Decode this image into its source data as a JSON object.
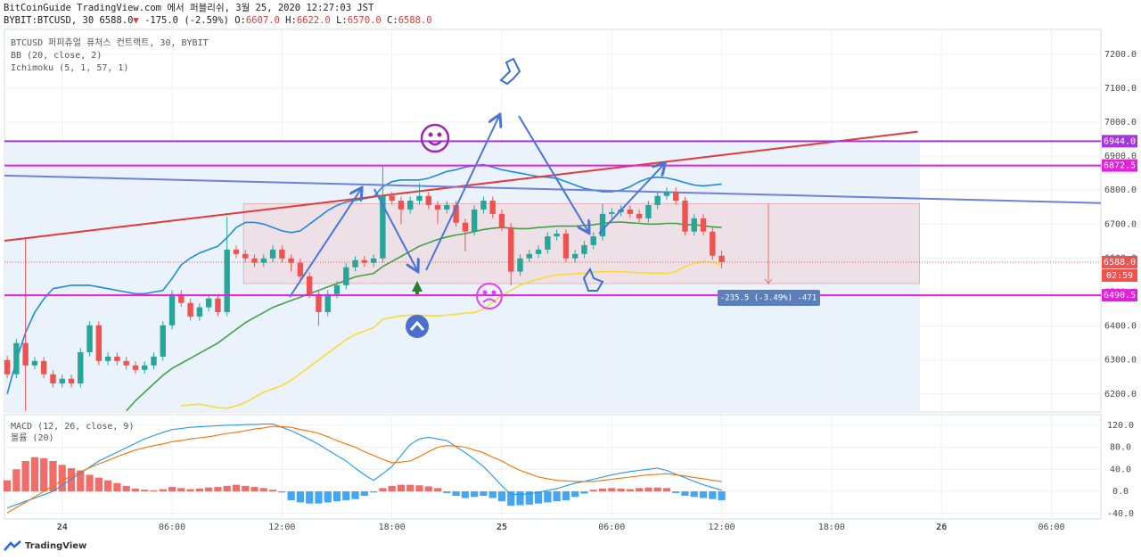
{
  "header": {
    "line1": "BitCoinGuide TradingView.com 에서 퍼블리쉬, 3월 25, 2020 12:27:03 JST",
    "symbol": "BYBIT:BTCUSD, 30",
    "price": "6588.0",
    "arrow": "▼",
    "change": "-175.0 (-2.59%)",
    "ohlc": [
      {
        "key": "O:",
        "value": "6607.0"
      },
      {
        "key": "H:",
        "value": "6622.0"
      },
      {
        "key": "L:",
        "value": "6570.0"
      },
      {
        "key": "C:",
        "value": "6588.0"
      }
    ]
  },
  "footer": {
    "brand": "TradingView"
  },
  "chart_data": [
    {
      "type": "candlestick",
      "indicators": [
        "BTCUSD 퍼피츄얼 퓨처스 컨트랙트, 30, BYBIT",
        "BB (20, close, 2)",
        "Ichimoku (5, 1, 57, 1)"
      ],
      "up_color": "#26a69a",
      "down_color": "#ef5350",
      "xlim": [
        -0.3,
        119.4
      ],
      "ylim": [
        6147,
        7273
      ],
      "yticks": [
        {
          "value": 6200,
          "label": "6200.0"
        },
        {
          "value": 6300,
          "label": "6300.0"
        },
        {
          "value": 6400,
          "label": "6400.0"
        },
        {
          "value": 6500,
          "label": "6500.0"
        },
        {
          "value": 6600,
          "label": "6600.0"
        },
        {
          "value": 6700,
          "label": "6700.0"
        },
        {
          "value": 6800,
          "label": "6800.0"
        },
        {
          "value": 6900,
          "label": "6900.0"
        },
        {
          "value": 7000,
          "label": "7000.0"
        },
        {
          "value": 7100,
          "label": "7100.0"
        },
        {
          "value": 7200,
          "label": "7200.0"
        }
      ],
      "candles": [
        [
          6300,
          6312,
          6246,
          6258
        ],
        [
          6258,
          6362,
          6246,
          6350
        ],
        [
          6350,
          6657,
          6150,
          6284
        ],
        [
          6284,
          6309,
          6272,
          6297
        ],
        [
          6297,
          6309,
          6246,
          6258
        ],
        [
          6258,
          6270,
          6219,
          6231
        ],
        [
          6231,
          6257,
          6219,
          6245
        ],
        [
          6245,
          6257,
          6219,
          6231
        ],
        [
          6231,
          6335,
          6219,
          6323
        ],
        [
          6323,
          6414,
          6311,
          6402
        ],
        [
          6402,
          6414,
          6285,
          6297
        ],
        [
          6297,
          6322,
          6285,
          6310
        ],
        [
          6310,
          6322,
          6285,
          6297
        ],
        [
          6297,
          6309,
          6272,
          6284
        ],
        [
          6284,
          6296,
          6259,
          6271
        ],
        [
          6271,
          6296,
          6259,
          6284
        ],
        [
          6284,
          6322,
          6272,
          6310
        ],
        [
          6310,
          6414,
          6298,
          6402
        ],
        [
          6402,
          6506,
          6390,
          6494
        ],
        [
          6494,
          6506,
          6456,
          6468
        ],
        [
          6468,
          6480,
          6416,
          6428
        ],
        [
          6428,
          6467,
          6416,
          6455
        ],
        [
          6455,
          6493,
          6443,
          6481
        ],
        [
          6481,
          6493,
          6429,
          6441
        ],
        [
          6441,
          6722,
          6429,
          6625
        ],
        [
          6625,
          6637,
          6600,
          6612
        ],
        [
          6612,
          6624,
          6587,
          6599
        ],
        [
          6599,
          6611,
          6574,
          6586
        ],
        [
          6586,
          6611,
          6574,
          6599
        ],
        [
          6599,
          6637,
          6587,
          6625
        ],
        [
          6625,
          6637,
          6587,
          6599
        ],
        [
          6599,
          6611,
          6560,
          6586
        ],
        [
          6586,
          6598,
          6534,
          6546
        ],
        [
          6546,
          6558,
          6482,
          6494
        ],
        [
          6494,
          6506,
          6400,
          6441
        ],
        [
          6441,
          6506,
          6429,
          6494
        ],
        [
          6494,
          6532,
          6482,
          6520
        ],
        [
          6520,
          6585,
          6508,
          6573
        ],
        [
          6573,
          6606,
          6561,
          6594
        ],
        [
          6594,
          6606,
          6574,
          6586
        ],
        [
          6586,
          6611,
          6574,
          6599
        ],
        [
          6599,
          6872,
          6587,
          6783
        ],
        [
          6783,
          6795,
          6757,
          6769
        ],
        [
          6769,
          6781,
          6700,
          6743
        ],
        [
          6743,
          6781,
          6731,
          6769
        ],
        [
          6769,
          6820,
          6757,
          6783
        ],
        [
          6783,
          6795,
          6744,
          6756
        ],
        [
          6756,
          6768,
          6700,
          6743
        ],
        [
          6743,
          6768,
          6731,
          6756
        ],
        [
          6756,
          6768,
          6692,
          6704
        ],
        [
          6704,
          6716,
          6620,
          6678
        ],
        [
          6678,
          6755,
          6666,
          6743
        ],
        [
          6743,
          6781,
          6731,
          6769
        ],
        [
          6769,
          6781,
          6718,
          6730
        ],
        [
          6730,
          6742,
          6679,
          6691
        ],
        [
          6691,
          6703,
          6520,
          6560
        ],
        [
          6560,
          6611,
          6548,
          6599
        ],
        [
          6599,
          6624,
          6587,
          6612
        ],
        [
          6612,
          6637,
          6600,
          6625
        ],
        [
          6625,
          6676,
          6613,
          6664
        ],
        [
          6664,
          6684,
          6652,
          6672
        ],
        [
          6672,
          6684,
          6587,
          6599
        ],
        [
          6599,
          6624,
          6587,
          6612
        ],
        [
          6612,
          6650,
          6600,
          6638
        ],
        [
          6638,
          6676,
          6626,
          6664
        ],
        [
          6664,
          6760,
          6652,
          6730
        ],
        [
          6730,
          6747,
          6718,
          6735
        ],
        [
          6735,
          6755,
          6723,
          6743
        ],
        [
          6743,
          6755,
          6718,
          6730
        ],
        [
          6730,
          6742,
          6705,
          6717
        ],
        [
          6717,
          6768,
          6705,
          6756
        ],
        [
          6756,
          6795,
          6744,
          6783
        ],
        [
          6783,
          6808,
          6771,
          6796
        ],
        [
          6796,
          6808,
          6757,
          6769
        ],
        [
          6769,
          6781,
          6666,
          6678
        ],
        [
          6678,
          6729,
          6666,
          6717
        ],
        [
          6717,
          6729,
          6666,
          6678
        ],
        [
          6678,
          6690,
          6595,
          6607
        ],
        [
          6607,
          6622,
          6570,
          6588
        ]
      ],
      "series": [
        {
          "color": "#1e88e5",
          "values": [
            6200,
            6300,
            6380,
            6440,
            6480,
            6510,
            6515,
            6520,
            6520,
            6520,
            6515,
            6510,
            6505,
            6500,
            6495,
            6495,
            6500,
            6505,
            6540,
            6580,
            6600,
            6615,
            6625,
            6635,
            6660,
            6690,
            6705,
            6705,
            6700,
            6690,
            6680,
            6675,
            6680,
            6700,
            6720,
            6740,
            6755,
            6765,
            6770,
            6775,
            6780,
            6810,
            6825,
            6830,
            6830,
            6830,
            6835,
            6845,
            6855,
            6860,
            6868,
            6872,
            6875,
            6868,
            6860,
            6855,
            6850,
            6845,
            6840,
            6838,
            6835,
            6825,
            6815,
            6805,
            6800,
            6795,
            6795,
            6800,
            6810,
            6825,
            6835,
            6838,
            6836,
            6830,
            6822,
            6815,
            6812,
            6815,
            6818
          ]
        },
        {
          "color": "#43a047",
          "values": [
            null,
            null,
            null,
            null,
            null,
            null,
            null,
            null,
            null,
            null,
            null,
            null,
            null,
            6150,
            6180,
            6205,
            6230,
            6255,
            6275,
            6290,
            6305,
            6320,
            6335,
            6350,
            6370,
            6390,
            6410,
            6425,
            6440,
            6455,
            6465,
            6475,
            6485,
            6495,
            6505,
            6515,
            6525,
            6535,
            6545,
            6550,
            6555,
            6575,
            6590,
            6605,
            6620,
            6635,
            6645,
            6655,
            6662,
            6668,
            6672,
            6678,
            6684,
            6688,
            6690,
            6688,
            6686,
            6687,
            6690,
            6692,
            6694,
            6694,
            6694,
            6696,
            6698,
            6702,
            6705,
            6706,
            6704,
            6702,
            6700,
            6700,
            6702,
            6702,
            6698,
            6698,
            6695,
            6692,
            6690
          ]
        },
        {
          "color": "#fdd835",
          "values": [
            null,
            null,
            null,
            null,
            null,
            null,
            null,
            null,
            null,
            null,
            null,
            null,
            null,
            null,
            null,
            null,
            null,
            null,
            null,
            6165,
            6168,
            6170,
            6165,
            6160,
            6158,
            6165,
            6175,
            6190,
            6205,
            6215,
            6225,
            6240,
            6260,
            6280,
            6300,
            6320,
            6340,
            6360,
            6375,
            6385,
            6395,
            6420,
            6425,
            6430,
            6432,
            6432,
            6430,
            6430,
            6432,
            6435,
            6438,
            6440,
            6450,
            6470,
            6490,
            6505,
            6520,
            6530,
            6538,
            6545,
            6550,
            6552,
            6554,
            6556,
            6558,
            6560,
            6560,
            6560,
            6558,
            6557,
            6556,
            6556,
            6555,
            6560,
            6575,
            6585,
            6590,
            6588,
            6580
          ]
        }
      ],
      "levels": [
        {
          "value": 6944,
          "label": "6944.0",
          "color": "#a536e0"
        },
        {
          "value": 6872.5,
          "label": "6872.5",
          "color": "#e61ee0"
        },
        {
          "value": 6490.5,
          "label": "6490.5",
          "color": "#e61ee0"
        }
      ],
      "trendlines": [
        {
          "color": "#e53935",
          "start": [
            -0.3,
            6651
          ],
          "end": [
            99.4,
            6972
          ]
        },
        {
          "color": "#6f7fe0",
          "start": [
            -0.3,
            6843
          ],
          "end": [
            119.4,
            6762
          ]
        }
      ],
      "measure": {
        "start_x": 25.8,
        "end_x": 99.6,
        "start_price": 6760.5,
        "end_price": 6525,
        "label": "-235.5 (-3.49%) -471"
      },
      "last_price": {
        "value": 6588,
        "label": "6588.0",
        "countdown": "02:59",
        "color": "#ef5350"
      }
    },
    {
      "type": "macd",
      "title": "MACD (12, 26, close, 9)",
      "volume_title": "볼륨 (20)",
      "xlim": [
        -0.3,
        119.4
      ],
      "ylim": [
        -50,
        139
      ],
      "yticks": [
        {
          "value": 120,
          "label": "120.0"
        },
        {
          "value": 80,
          "label": "80.0"
        },
        {
          "value": 40,
          "label": "40.0"
        },
        {
          "value": 0,
          "label": "0.0"
        },
        {
          "value": -40,
          "label": "-40.0"
        }
      ],
      "xticks": [
        {
          "value": 6,
          "label": "24"
        },
        {
          "value": 18,
          "label": "06:00"
        },
        {
          "value": 30,
          "label": "12:00"
        },
        {
          "value": 42,
          "label": "18:00"
        },
        {
          "value": 54,
          "label": "25"
        },
        {
          "value": 66,
          "label": "06:00"
        },
        {
          "value": 78,
          "label": "12:00"
        },
        {
          "value": 90,
          "label": "18:00"
        },
        {
          "value": 102,
          "label": "26"
        },
        {
          "value": 114,
          "label": "06:00"
        }
      ],
      "histogram": {
        "positive_color": "#ef5350",
        "negative_color": "#2196f3",
        "values": [
          20,
          40,
          55,
          62,
          60,
          55,
          48,
          42,
          38,
          30,
          25,
          20,
          15,
          10,
          5,
          3,
          2,
          4,
          8,
          6,
          4,
          5,
          7,
          8,
          10,
          12,
          10,
          8,
          6,
          3,
          -2,
          -16,
          -20,
          -22,
          -22,
          -20,
          -18,
          -16,
          -14,
          -8,
          -2,
          6,
          10,
          12,
          12,
          11,
          9,
          6,
          -3,
          -8,
          -12,
          -10,
          -8,
          -12,
          -18,
          -26,
          -25,
          -24,
          -22,
          -20,
          -18,
          -16,
          -10,
          -4,
          3,
          5,
          6,
          5,
          4,
          6,
          7,
          7,
          6,
          -3,
          -8,
          -10,
          -12,
          -14,
          -16
        ]
      },
      "series": [
        {
          "color": "#2196f3",
          "values": [
            -30,
            -24,
            -18,
            -12,
            -6,
            0,
            11,
            22,
            33,
            44,
            55,
            63,
            71,
            79,
            87,
            95,
            101,
            107,
            112,
            114,
            116,
            117,
            118,
            119,
            120,
            120,
            121,
            121,
            122,
            122,
            116,
            110,
            102,
            94,
            85,
            75,
            65,
            55,
            42,
            30,
            20,
            32,
            45,
            65,
            85,
            95,
            98,
            95,
            92,
            81,
            70,
            58,
            45,
            28,
            10,
            -5,
            -6,
            -4,
            -2,
            2,
            5,
            10,
            15,
            18,
            22,
            26,
            30,
            33,
            36,
            38,
            40,
            42,
            38,
            31,
            25,
            18,
            12,
            7,
            2
          ]
        },
        {
          "color": "#ff6d00",
          "values": [
            -39,
            -29,
            -20,
            -10,
            0,
            10,
            20,
            28,
            35,
            43,
            50,
            56,
            63,
            69,
            75,
            79,
            83,
            86,
            90,
            92,
            95,
            97,
            99,
            102,
            105,
            107,
            110,
            113,
            115,
            118,
            117,
            116,
            112,
            109,
            105,
            99,
            92,
            86,
            80,
            72,
            65,
            58,
            52,
            53,
            55,
            63,
            72,
            80,
            83,
            82,
            80,
            75,
            70,
            62,
            55,
            46,
            38,
            32,
            26,
            23,
            20,
            19,
            18,
            18,
            18,
            20,
            22,
            24,
            26,
            28,
            30,
            31,
            32,
            30,
            28,
            25,
            23,
            20,
            18
          ]
        }
      ]
    }
  ]
}
